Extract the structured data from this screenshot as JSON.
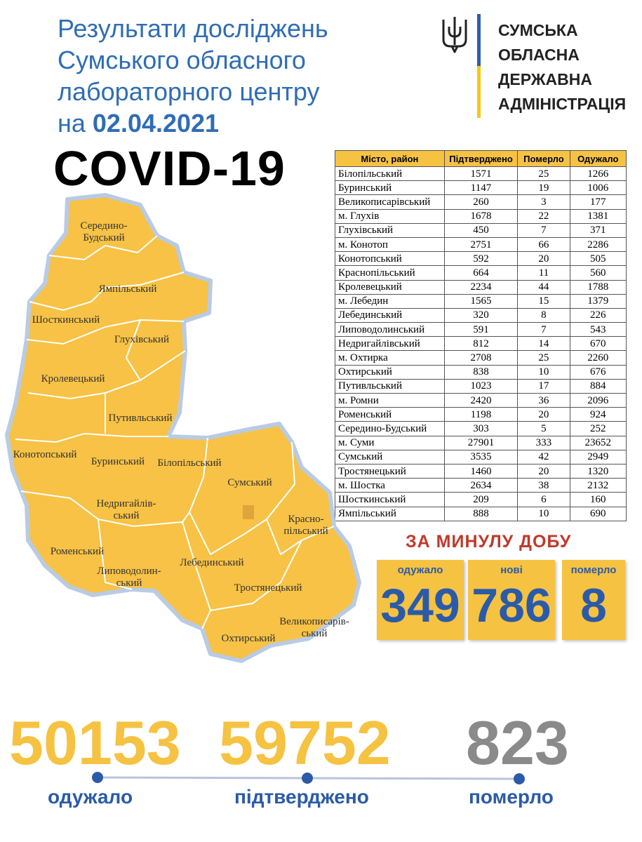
{
  "header": {
    "title_lines": [
      "Результати досліджень",
      "Сумського обласного",
      "лабораторного центру"
    ],
    "date_prefix": "на ",
    "date": "02.04.2021",
    "covid": "COVID-19"
  },
  "logo": {
    "lines": [
      "СУМСЬКА",
      "ОБЛАСНА",
      "ДЕРЖАВНА",
      "АДМІНІСТРАЦІЯ"
    ],
    "colors": {
      "blue": "#2f5ea8",
      "yellow": "#f5c814"
    }
  },
  "table": {
    "headers": [
      "Місто, район",
      "Підтверджено",
      "Померло",
      "Одужало"
    ],
    "rows": [
      [
        "Білопільський",
        "1571",
        "25",
        "1266"
      ],
      [
        "Буринський",
        "1147",
        "19",
        "1006"
      ],
      [
        "Великописарівський",
        "260",
        "3",
        "177"
      ],
      [
        "м. Глухів",
        "1678",
        "22",
        "1381"
      ],
      [
        "Глухівський",
        "450",
        "7",
        "371"
      ],
      [
        "м. Конотоп",
        "2751",
        "66",
        "2286"
      ],
      [
        "Конотопський",
        "592",
        "20",
        "505"
      ],
      [
        "Краснопільський",
        "664",
        "11",
        "560"
      ],
      [
        "Кролевецький",
        "2234",
        "44",
        "1788"
      ],
      [
        "м. Лебедин",
        "1565",
        "15",
        "1379"
      ],
      [
        "Лебединський",
        "320",
        "8",
        "226"
      ],
      [
        "Липоводолинський",
        "591",
        "7",
        "543"
      ],
      [
        "Недригайлівський",
        "812",
        "14",
        "670"
      ],
      [
        "м. Охтирка",
        "2708",
        "25",
        "2260"
      ],
      [
        "Охтирський",
        "838",
        "10",
        "676"
      ],
      [
        "Путивльський",
        "1023",
        "17",
        "884"
      ],
      [
        "м. Ромни",
        "2420",
        "36",
        "2096"
      ],
      [
        "Роменський",
        "1198",
        "20",
        "924"
      ],
      [
        "Середино-Будський",
        "303",
        "5",
        "252"
      ],
      [
        "м. Суми",
        "27901",
        "333",
        "23652"
      ],
      [
        "Сумський",
        "3535",
        "42",
        "2949"
      ],
      [
        "Тростянецький",
        "1460",
        "20",
        "1320"
      ],
      [
        "м. Шостка",
        "2634",
        "38",
        "2132"
      ],
      [
        "Шосткинський",
        "209",
        "6",
        "160"
      ],
      [
        "Ямпільський",
        "888",
        "10",
        "690"
      ]
    ]
  },
  "map": {
    "region_labels": [
      [
        "Середино-",
        "Будський"
      ],
      [
        "Ямпільський"
      ],
      [
        "Шосткинський"
      ],
      [
        "Глухівський"
      ],
      [
        "Кролевецький"
      ],
      [
        "Путивльський"
      ],
      [
        "Конотопський"
      ],
      [
        "Буринський"
      ],
      [
        "Білопільський"
      ],
      [
        "Сумський"
      ],
      [
        "Недригайлів-",
        "ський"
      ],
      [
        "Красно-",
        "пільський"
      ],
      [
        "Роменський"
      ],
      [
        "Лебединський"
      ],
      [
        "Липоводолин-",
        "ський"
      ],
      [
        "Тростянецький"
      ],
      [
        "Охтирський"
      ],
      [
        "Великописарів-",
        "ський"
      ]
    ],
    "fill_color": "#f7c245"
  },
  "daily": {
    "title": "ЗА МИНУЛУ ДОБУ",
    "cards": [
      {
        "label": "одужало",
        "value": "349"
      },
      {
        "label": "нові",
        "value": "786"
      },
      {
        "label": "померло",
        "value": "8"
      }
    ]
  },
  "totals": {
    "recovered": {
      "value": "50153",
      "label": "одужало"
    },
    "confirmed": {
      "value": "59752",
      "label": "підтверджено"
    },
    "died": {
      "value": "823",
      "label": "померло"
    }
  }
}
